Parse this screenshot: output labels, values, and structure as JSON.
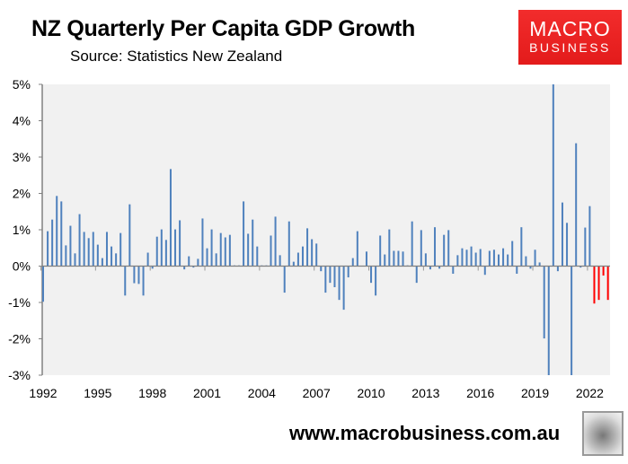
{
  "header": {
    "title": "NZ Quarterly Per Capita GDP Growth",
    "source": "Source: Statistics New Zealand"
  },
  "logo": {
    "line1": "MACRO",
    "line2": "BUSINESS",
    "color": "#e8201f"
  },
  "footer": {
    "url": "www.macrobusiness.com.au",
    "mascot_icon": "wolf-head-icon"
  },
  "chart_data": {
    "type": "bar",
    "title": "NZ Quarterly Per Capita GDP Growth",
    "xlabel": "",
    "ylabel": "",
    "x_start": "1992 Q1",
    "frequency": "quarterly",
    "ylim": [
      -3,
      5
    ],
    "y_ticks": [
      "5%",
      "4%",
      "3%",
      "2%",
      "1%",
      "0%",
      "-1%",
      "-2%",
      "-3%"
    ],
    "x_ticks": [
      "1992",
      "1995",
      "1998",
      "2001",
      "2004",
      "2007",
      "2010",
      "2013",
      "2016",
      "2019",
      "2022"
    ],
    "grid": false,
    "background": "#f1f1f1",
    "bar_color": "#4f81bd",
    "highlight_color": "#ff0000",
    "highlight_last_n": 4,
    "values": [
      -0.98,
      0.96,
      1.28,
      1.93,
      1.78,
      0.57,
      1.11,
      0.35,
      1.43,
      0.94,
      0.77,
      0.94,
      0.59,
      0.22,
      0.94,
      0.54,
      0.35,
      0.91,
      -0.81,
      1.7,
      -0.47,
      -0.49,
      -0.81,
      0.37,
      -0.07,
      0.81,
      1.01,
      0.72,
      2.67,
      1.01,
      1.26,
      -0.09,
      0.27,
      -0.04,
      0.2,
      1.31,
      0.49,
      1.01,
      0.35,
      0.91,
      0.79,
      0.86,
      0.02,
      0.02,
      1.78,
      0.89,
      1.28,
      0.54,
      0.02,
      0.02,
      0.84,
      1.36,
      0.3,
      -0.73,
      1.23,
      0.12,
      0.37,
      0.54,
      1.04,
      0.74,
      0.62,
      -0.14,
      -0.73,
      -0.46,
      -0.58,
      -0.93,
      -1.2,
      -0.31,
      0.22,
      0.96,
      0.0,
      0.4,
      -0.46,
      -0.81,
      0.84,
      0.32,
      1.01,
      0.42,
      0.42,
      0.4,
      0.02,
      1.23,
      -0.46,
      0.99,
      0.35,
      -0.09,
      1.07,
      -0.07,
      0.86,
      0.99,
      -0.21,
      0.3,
      0.49,
      0.45,
      0.54,
      0.37,
      0.47,
      -0.24,
      0.42,
      0.45,
      0.32,
      0.49,
      0.32,
      0.69,
      -0.21,
      1.07,
      0.27,
      -0.07,
      0.45,
      0.1,
      -1.99,
      -3.0,
      5.0,
      -0.14,
      1.75,
      1.19,
      -3.0,
      3.38,
      -0.04,
      1.06,
      1.65,
      -1.03,
      -0.93,
      -0.26,
      -0.93
    ]
  }
}
